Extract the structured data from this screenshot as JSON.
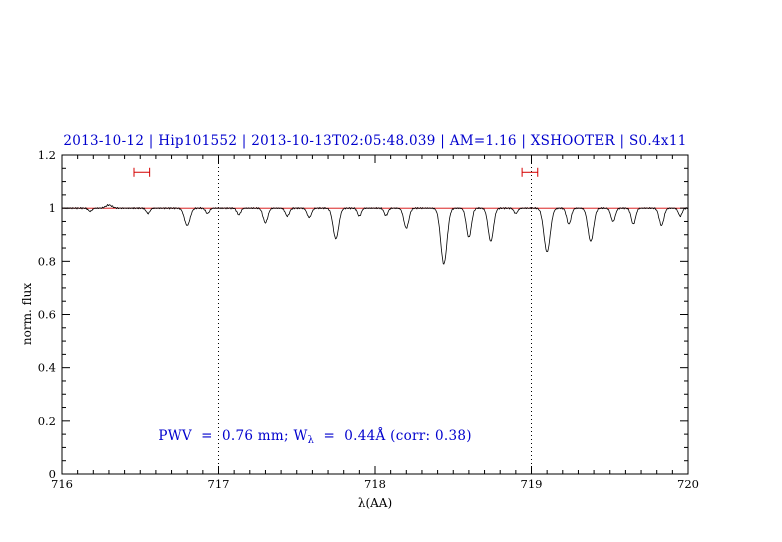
{
  "chart_data": {
    "type": "line",
    "title": "2013-10-12 | Hip101552 | 2013-10-13T02:05:48.039 | AM=1.16 | XSHOOTER | S0.4x11",
    "xlabel": "λ(AA)",
    "ylabel": "norm. flux",
    "xlim": [
      716,
      720
    ],
    "ylim": [
      0,
      1.2
    ],
    "x_ticks": [
      {
        "value": 716,
        "label": "716"
      },
      {
        "value": 717,
        "label": "717"
      },
      {
        "value": 718,
        "label": "718"
      },
      {
        "value": 719,
        "label": "719"
      },
      {
        "value": 720,
        "label": "720"
      }
    ],
    "y_ticks": [
      {
        "value": 0,
        "label": "0"
      },
      {
        "value": 0.2,
        "label": "0.2"
      },
      {
        "value": 0.4,
        "label": "0.4"
      },
      {
        "value": 0.6,
        "label": "0.6"
      },
      {
        "value": 0.8,
        "label": "0.8"
      },
      {
        "value": 1,
        "label": "1"
      },
      {
        "value": 1.2,
        "label": "1.2"
      }
    ],
    "x_minor_step": 0.1,
    "y_minor_step": 0.05,
    "grid": false,
    "continuum_level": 1.0,
    "reference_line_y": 1.0,
    "vertical_dotted_lines": [
      717,
      719
    ],
    "region_markers": [
      {
        "x_start": 716.46,
        "x_end": 716.56,
        "y": 1.135
      },
      {
        "x_start": 718.94,
        "x_end": 719.04,
        "y": 1.135
      }
    ],
    "annotation": {
      "prefix": "PWV  =  0.76 mm; W",
      "subscript": "λ",
      "suffix": "  =  0.44Å (corr: 0.38)"
    },
    "absorption_lines": [
      {
        "center": 716.18,
        "depth": 0.012,
        "sigma": 0.012
      },
      {
        "center": 716.3,
        "depth": -0.012,
        "sigma": 0.02
      },
      {
        "center": 716.55,
        "depth": 0.02,
        "sigma": 0.012
      },
      {
        "center": 716.8,
        "depth": 0.065,
        "sigma": 0.018
      },
      {
        "center": 716.93,
        "depth": 0.02,
        "sigma": 0.012
      },
      {
        "center": 717.13,
        "depth": 0.025,
        "sigma": 0.012
      },
      {
        "center": 717.3,
        "depth": 0.055,
        "sigma": 0.015
      },
      {
        "center": 717.44,
        "depth": 0.03,
        "sigma": 0.013
      },
      {
        "center": 717.58,
        "depth": 0.035,
        "sigma": 0.014
      },
      {
        "center": 717.75,
        "depth": 0.115,
        "sigma": 0.018
      },
      {
        "center": 717.9,
        "depth": 0.03,
        "sigma": 0.012
      },
      {
        "center": 718.07,
        "depth": 0.028,
        "sigma": 0.012
      },
      {
        "center": 718.2,
        "depth": 0.075,
        "sigma": 0.016
      },
      {
        "center": 718.44,
        "depth": 0.21,
        "sigma": 0.02
      },
      {
        "center": 718.6,
        "depth": 0.11,
        "sigma": 0.016
      },
      {
        "center": 718.74,
        "depth": 0.125,
        "sigma": 0.017
      },
      {
        "center": 718.9,
        "depth": 0.02,
        "sigma": 0.012
      },
      {
        "center": 719.1,
        "depth": 0.165,
        "sigma": 0.02
      },
      {
        "center": 719.24,
        "depth": 0.06,
        "sigma": 0.014
      },
      {
        "center": 719.38,
        "depth": 0.125,
        "sigma": 0.018
      },
      {
        "center": 719.52,
        "depth": 0.05,
        "sigma": 0.014
      },
      {
        "center": 719.65,
        "depth": 0.06,
        "sigma": 0.014
      },
      {
        "center": 719.83,
        "depth": 0.065,
        "sigma": 0.015
      },
      {
        "center": 719.95,
        "depth": 0.03,
        "sigma": 0.012
      }
    ],
    "noise_amplitude": 0.0035,
    "sample_step": 0.004,
    "colors": {
      "title": "#0000cd",
      "annotation": "#0000cd",
      "reference_line": "#d40000",
      "region_markers": "#d40000",
      "spectrum": "#000000",
      "axes": "#000000"
    }
  }
}
